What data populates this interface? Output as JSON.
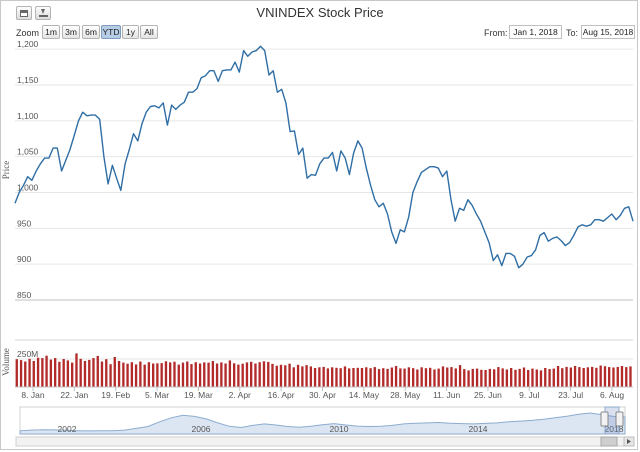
{
  "window": {
    "export_buttons": [
      {
        "icon": "print-icon"
      },
      {
        "icon": "download-icon"
      }
    ]
  },
  "toolbar": {
    "zoom_label": "Zoom",
    "zoom_buttons": [
      {
        "label": "1m",
        "active": false
      },
      {
        "label": "3m",
        "active": false
      },
      {
        "label": "6m",
        "active": false
      },
      {
        "label": "YTD",
        "active": true
      },
      {
        "label": "1y",
        "active": false
      },
      {
        "label": "All",
        "active": false
      }
    ],
    "from_label": "From:",
    "from_value": "Jan 1, 2018",
    "to_label": "To:",
    "to_value": "Aug 15, 2018"
  },
  "colors": {
    "price_line": "#2f6ea5",
    "volume_bar": "#b32a2a",
    "grid": "#e6e6e6",
    "navigator_fill": "#dce6f2",
    "navigator_line": "#8caccf"
  },
  "chart_data": [
    {
      "type": "line",
      "title": "VNINDEX Stock Price",
      "ylabel": "Price",
      "ylim": [
        850,
        1210
      ],
      "y_ticks": [
        "850",
        "900",
        "950",
        "1,000",
        "1,050",
        "1,100",
        "1,150",
        "1,200"
      ],
      "x_tick_labels": [
        "8. Jan",
        "22. Jan",
        "19. Feb",
        "5. Mar",
        "19. Mar",
        "2. Apr",
        "16. Apr",
        "30. Apr",
        "14. May",
        "28. May",
        "11. Jun",
        "25. Jun",
        "9. Jul",
        "23. Jul",
        "6. Aug"
      ],
      "grid": true,
      "series": [
        {
          "values": [
            985,
            1000,
            1010,
            1022,
            1017,
            1030,
            1040,
            1048,
            1048,
            1062,
            1062,
            1030,
            1045,
            1060,
            1080,
            1100,
            1112,
            1107,
            1108,
            1108,
            1102,
            1050,
            1012,
            1038,
            1020,
            1003,
            1040,
            1060,
            1082,
            1072,
            1096,
            1112,
            1120,
            1121,
            1118,
            1125,
            1094,
            1122,
            1116,
            1122,
            1126,
            1140,
            1140,
            1145,
            1160,
            1163,
            1170,
            1170,
            1155,
            1170,
            1171,
            1171,
            1182,
            1168,
            1198,
            1190,
            1196,
            1198,
            1204,
            1198,
            1164,
            1170,
            1140,
            1144,
            1125,
            1085,
            1086,
            1053,
            1062,
            1020,
            1025,
            1024,
            1040,
            1048,
            1048,
            1056,
            1030,
            1058,
            1048,
            1025,
            1055,
            1072,
            1062,
            1034,
            1010,
            990,
            980,
            985,
            970,
            945,
            929,
            948,
            945,
            966,
            1000,
            1015,
            1028,
            1032,
            1036,
            1036,
            1034,
            1022,
            1030,
            990,
            960,
            978,
            975,
            990,
            982,
            970,
            960,
            945,
            930,
            905,
            913,
            898,
            915,
            915,
            911,
            895,
            900,
            910,
            912,
            920,
            940,
            944,
            932,
            936,
            938,
            933,
            926,
            930,
            940,
            952,
            955,
            953,
            955,
            962,
            962,
            960,
            965,
            970,
            962,
            968,
            978,
            980,
            960
          ]
        }
      ]
    },
    {
      "type": "bar",
      "ylabel": "Volume",
      "y_ticks": [
        "250M"
      ],
      "ylim": [
        0,
        420
      ],
      "series": [
        {
          "values": [
            248,
            240,
            228,
            252,
            232,
            262,
            258,
            280,
            245,
            258,
            225,
            250,
            238,
            218,
            300,
            252,
            232,
            242,
            258,
            278,
            228,
            248,
            204,
            268,
            232,
            218,
            208,
            222,
            202,
            228,
            200,
            222,
            210,
            212,
            214,
            230,
            220,
            226,
            200,
            218,
            228,
            205,
            222,
            210,
            220,
            218,
            232,
            210,
            220,
            210,
            238,
            212,
            200,
            208,
            220,
            225,
            210,
            222,
            230,
            224,
            206,
            190,
            198,
            194,
            208,
            176,
            198,
            184,
            196,
            184,
            170,
            176,
            180,
            166,
            176,
            172,
            168,
            184,
            166,
            170,
            172,
            170,
            176,
            168,
            178,
            160,
            168,
            162,
            174,
            188,
            166,
            164,
            176,
            168,
            156,
            176,
            168,
            172,
            156,
            164,
            184,
            174,
            178,
            166,
            196,
            160,
            148,
            162,
            164,
            154,
            152,
            162,
            158,
            178,
            166,
            156,
            170,
            154,
            162,
            174,
            152,
            164,
            156,
            148,
            170,
            160,
            164,
            188,
            168,
            180,
            174,
            188,
            178,
            170,
            176,
            180,
            172,
            192,
            186,
            178,
            174,
            180,
            188,
            178,
            184
          ]
        }
      ]
    },
    {
      "type": "area",
      "x_tick_labels": [
        "2002",
        "2006",
        "2010",
        "2014",
        "2018"
      ],
      "values": [
        180,
        215,
        240,
        230,
        205,
        182,
        170,
        178,
        185,
        220,
        310,
        420,
        680,
        900,
        1040,
        980,
        840,
        620,
        430,
        360,
        480,
        560,
        500,
        420,
        380,
        430,
        520,
        580,
        500,
        440,
        420,
        430,
        480,
        560,
        600,
        620,
        640,
        600,
        580,
        560,
        590,
        620,
        680,
        720,
        760,
        820,
        900,
        990,
        1100,
        1170,
        1080,
        980,
        960
      ]
    }
  ]
}
